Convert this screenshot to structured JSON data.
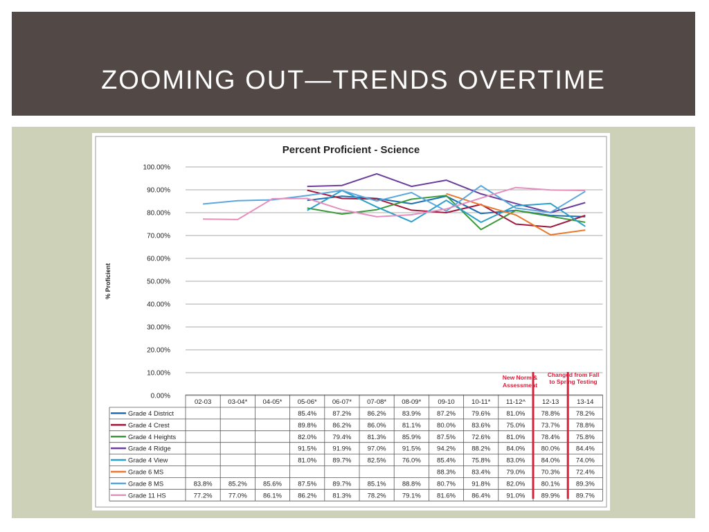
{
  "slide": {
    "title": "ZOOMING OUT—TRENDS OVERTIME"
  },
  "chart_data": {
    "type": "line",
    "title": "Percent Proficient - Science",
    "ylabel": "% Proficient",
    "xlabel": "",
    "ylim": [
      0,
      100
    ],
    "yticks": [
      "0.00%",
      "10.00%",
      "20.00%",
      "30.00%",
      "40.00%",
      "50.00%",
      "60.00%",
      "70.00%",
      "80.00%",
      "90.00%",
      "100.00%"
    ],
    "grid": true,
    "legend": "data-table",
    "categories": [
      "02-03",
      "03-04*",
      "04-05*",
      "05-06*",
      "06-07*",
      "07-08*",
      "08-09*",
      "09-10",
      "10-11*",
      "11-12^",
      "12-13",
      "13-14"
    ],
    "series": [
      {
        "name": "Grade 4 District",
        "color": "#1f6fb2",
        "values": [
          null,
          null,
          null,
          85.4,
          87.2,
          86.2,
          83.9,
          87.2,
          79.6,
          81.0,
          78.8,
          78.2
        ],
        "labels": [
          "",
          "",
          "",
          "85.4%",
          "87.2%",
          "86.2%",
          "83.9%",
          "87.2%",
          "79.6%",
          "81.0%",
          "78.8%",
          "78.2%"
        ]
      },
      {
        "name": "Grade 4 Crest",
        "color": "#a0183c",
        "values": [
          null,
          null,
          null,
          89.8,
          86.2,
          86.0,
          81.1,
          80.0,
          83.6,
          75.0,
          73.7,
          78.8
        ],
        "labels": [
          "",
          "",
          "",
          "89.8%",
          "86.2%",
          "86.0%",
          "81.1%",
          "80.0%",
          "83.6%",
          "75.0%",
          "73.7%",
          "78.8%"
        ]
      },
      {
        "name": "Grade 4 Heights",
        "color": "#3a9a3a",
        "values": [
          null,
          null,
          null,
          82.0,
          79.4,
          81.3,
          85.9,
          87.5,
          72.6,
          81.0,
          78.4,
          75.8
        ],
        "labels": [
          "",
          "",
          "",
          "82.0%",
          "79.4%",
          "81.3%",
          "85.9%",
          "87.5%",
          "72.6%",
          "81.0%",
          "78.4%",
          "75.8%"
        ]
      },
      {
        "name": "Grade 4 Ridge",
        "color": "#6a3d9a",
        "values": [
          null,
          null,
          null,
          91.5,
          91.9,
          97.0,
          91.5,
          94.2,
          88.2,
          84.0,
          80.0,
          84.4
        ],
        "labels": [
          "",
          "",
          "",
          "91.5%",
          "91.9%",
          "97.0%",
          "91.5%",
          "94.2%",
          "88.2%",
          "84.0%",
          "80.0%",
          "84.4%"
        ]
      },
      {
        "name": "Grade 4 View",
        "color": "#2a9fc9",
        "values": [
          null,
          null,
          null,
          81.0,
          89.7,
          82.5,
          76.0,
          85.4,
          75.8,
          83.0,
          84.0,
          74.0
        ],
        "labels": [
          "",
          "",
          "",
          "81.0%",
          "89.7%",
          "82.5%",
          "76.0%",
          "85.4%",
          "75.8%",
          "83.0%",
          "84.0%",
          "74.0%"
        ]
      },
      {
        "name": "Grade 6 MS",
        "color": "#e8792b",
        "values": [
          null,
          null,
          null,
          null,
          null,
          null,
          null,
          88.3,
          83.4,
          79.0,
          70.3,
          72.4
        ],
        "labels": [
          "",
          "",
          "",
          "",
          "",
          "",
          "",
          "88.3%",
          "83.4%",
          "79.0%",
          "70.3%",
          "72.4%"
        ]
      },
      {
        "name": "Grade 8 MS",
        "color": "#5aa6dd",
        "values": [
          83.8,
          85.2,
          85.6,
          87.5,
          89.7,
          85.1,
          88.8,
          80.7,
          91.8,
          82.0,
          80.1,
          89.3
        ],
        "labels": [
          "83.8%",
          "85.2%",
          "85.6%",
          "87.5%",
          "89.7%",
          "85.1%",
          "88.8%",
          "80.7%",
          "91.8%",
          "82.0%",
          "80.1%",
          "89.3%"
        ]
      },
      {
        "name": "Grade 11 HS",
        "color": "#e58fbf",
        "values": [
          77.2,
          77.0,
          86.1,
          86.2,
          81.3,
          78.2,
          79.1,
          81.6,
          86.4,
          91.0,
          89.9,
          89.7
        ],
        "labels": [
          "77.2%",
          "77.0%",
          "86.1%",
          "86.2%",
          "81.3%",
          "78.2%",
          "79.1%",
          "81.6%",
          "86.4%",
          "91.0%",
          "89.9%",
          "89.7%"
        ]
      }
    ],
    "annotations": [
      {
        "text": [
          "New Norm &",
          "Assessment"
        ],
        "color": "#d8203a"
      },
      {
        "text": [
          "Changed from Fall",
          "to Spring Testing"
        ],
        "color": "#d8203a"
      }
    ]
  }
}
